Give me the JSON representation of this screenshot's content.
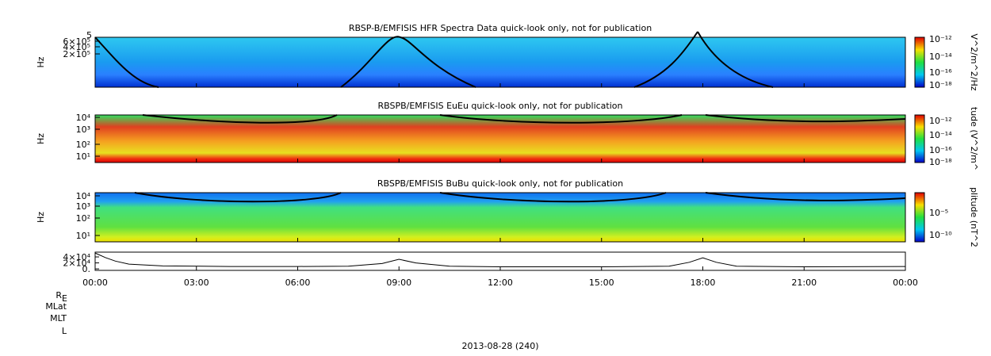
{
  "panels": [
    {
      "title": "RBSP-B/EMFISIS  HFR Spectra Data quick-look only, not for publication",
      "y_label": "Hz",
      "yticks": [
        "6×10⁵",
        "4×10⁵",
        "2×10⁵"
      ],
      "ytick_top": "5",
      "cbar_label": "V^2/m^2/Hz",
      "cbar_ticks": [
        "10⁻¹²",
        "10⁻¹⁴",
        "10⁻¹⁶",
        "10⁻¹⁸"
      ]
    },
    {
      "title": "RBSPB/EMFISIS  EuEu quick-look only, not for publication",
      "y_label": "Hz",
      "yticks": [
        "10⁴",
        "10³",
        "10²",
        "10¹"
      ],
      "cbar_label": "tude (V^2/m^",
      "cbar_ticks": [
        "10⁻¹²",
        "10⁻¹⁴",
        "10⁻¹⁶",
        "10⁻¹⁸"
      ]
    },
    {
      "title": "RBSPB/EMFISIS  BuBu quick-look only, not for publication",
      "y_label": "Hz",
      "yticks": [
        "10⁴",
        "10³",
        "10²",
        "10¹"
      ],
      "cbar_label": "plitude (nT^2",
      "cbar_ticks": [
        "10⁻⁵",
        "10⁻¹⁰"
      ]
    }
  ],
  "line_panel": {
    "yticks": [
      {
        "value": 40000,
        "label": "4×10⁴"
      },
      {
        "value": 20000,
        "label": "2×10⁴"
      },
      {
        "value": 0,
        "label": "0."
      }
    ],
    "ylim": [
      -5000,
      56000
    ],
    "x": [
      0,
      0.3,
      0.6,
      1,
      2,
      4,
      6,
      7.5,
      8.5,
      9,
      9.5,
      10.5,
      12,
      15,
      17,
      17.6,
      18,
      18.4,
      19,
      21,
      24
    ],
    "values": [
      53000,
      38000,
      26000,
      16000,
      10000,
      8000,
      8000,
      9000,
      18000,
      32000,
      20000,
      9000,
      7000,
      7000,
      9000,
      22000,
      37000,
      22000,
      9000,
      7000,
      8000
    ]
  },
  "time_labels": [
    "00:00",
    "03:00",
    "06:00",
    "09:00",
    "12:00",
    "15:00",
    "18:00",
    "21:00",
    "00:00"
  ],
  "ephemeris_labels": {
    "re": "R",
    "re_sub": "E",
    "mlat": "MLat",
    "mlt": "MLT",
    "l": "L"
  },
  "date_label": "2013-08-28 (240)"
}
